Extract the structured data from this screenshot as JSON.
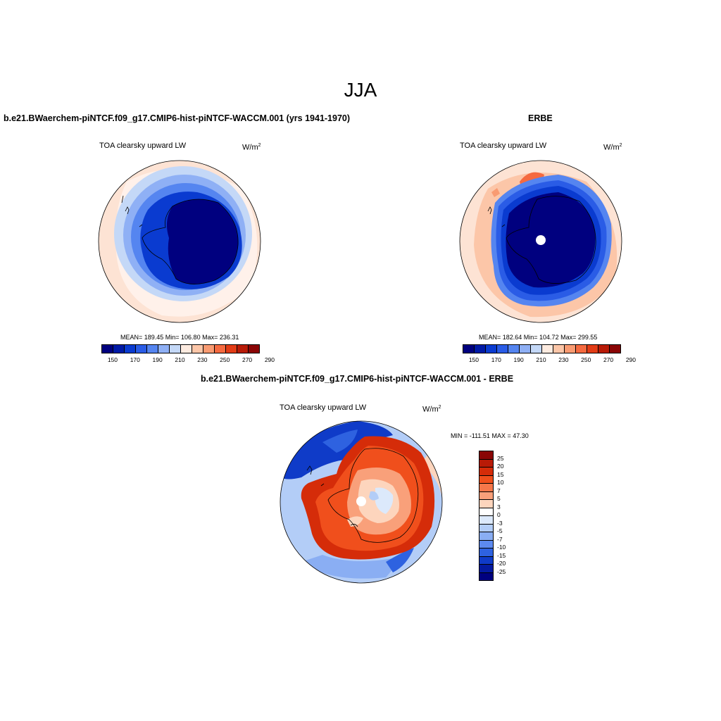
{
  "figure_title": "JJA",
  "panel1": {
    "title": "b.e21.BWaerchem-piNTCF.f09_g17.CMIP6-hist-piNTCF-WACCM.001 (yrs 1941-1970)",
    "subtitle": "TOA clearsky upward LW",
    "units_base": "W/m",
    "units_exp": "2",
    "stats": "MEAN= 189.45  Min= 106.80  Max= 236.31",
    "mean": 189.45,
    "min": 106.8,
    "max": 236.31
  },
  "panel2": {
    "title": "ERBE",
    "subtitle": "TOA clearsky upward LW",
    "units_base": "W/m",
    "units_exp": "2",
    "stats": "MEAN= 182.64  Min= 104.72  Max= 299.55",
    "mean": 182.64,
    "min": 104.72,
    "max": 299.55
  },
  "panel3": {
    "title": "b.e21.BWaerchem-piNTCF.f09_g17.CMIP6-hist-piNTCF-WACCM.001 - ERBE",
    "subtitle": "TOA clearsky upward LW",
    "units_base": "W/m",
    "units_exp": "2",
    "stats": "MIN = -111.51 MAX =  47.30",
    "min": -111.51,
    "max": 47.3
  },
  "abs_colorbar": {
    "colors": [
      "#00007f",
      "#001aa6",
      "#0a3bd0",
      "#2a5ce6",
      "#5585f0",
      "#8fb0f5",
      "#c4d8f7",
      "#fdebe0",
      "#fcc6a8",
      "#f99b72",
      "#f56a40",
      "#e23c16",
      "#b81b07",
      "#8a0505"
    ],
    "tick_labels": [
      "150",
      "170",
      "190",
      "210",
      "230",
      "250",
      "270",
      "290"
    ]
  },
  "diff_colorbar": {
    "colors": [
      "#8a0505",
      "#b81b07",
      "#d52c09",
      "#f04f1c",
      "#f6774a",
      "#f9a07a",
      "#fdd5bd",
      "#ffffff",
      "#dce9fb",
      "#b3cdf7",
      "#8aaef3",
      "#5d8af0",
      "#2e62e0",
      "#0f3bc8",
      "#041aa0",
      "#00007f"
    ],
    "tick_labels": [
      "25",
      "20",
      "15",
      "10",
      "7",
      "5",
      "3",
      "0",
      "-3",
      "-5",
      "-7",
      "-10",
      "-15",
      "-20",
      "-25"
    ]
  }
}
